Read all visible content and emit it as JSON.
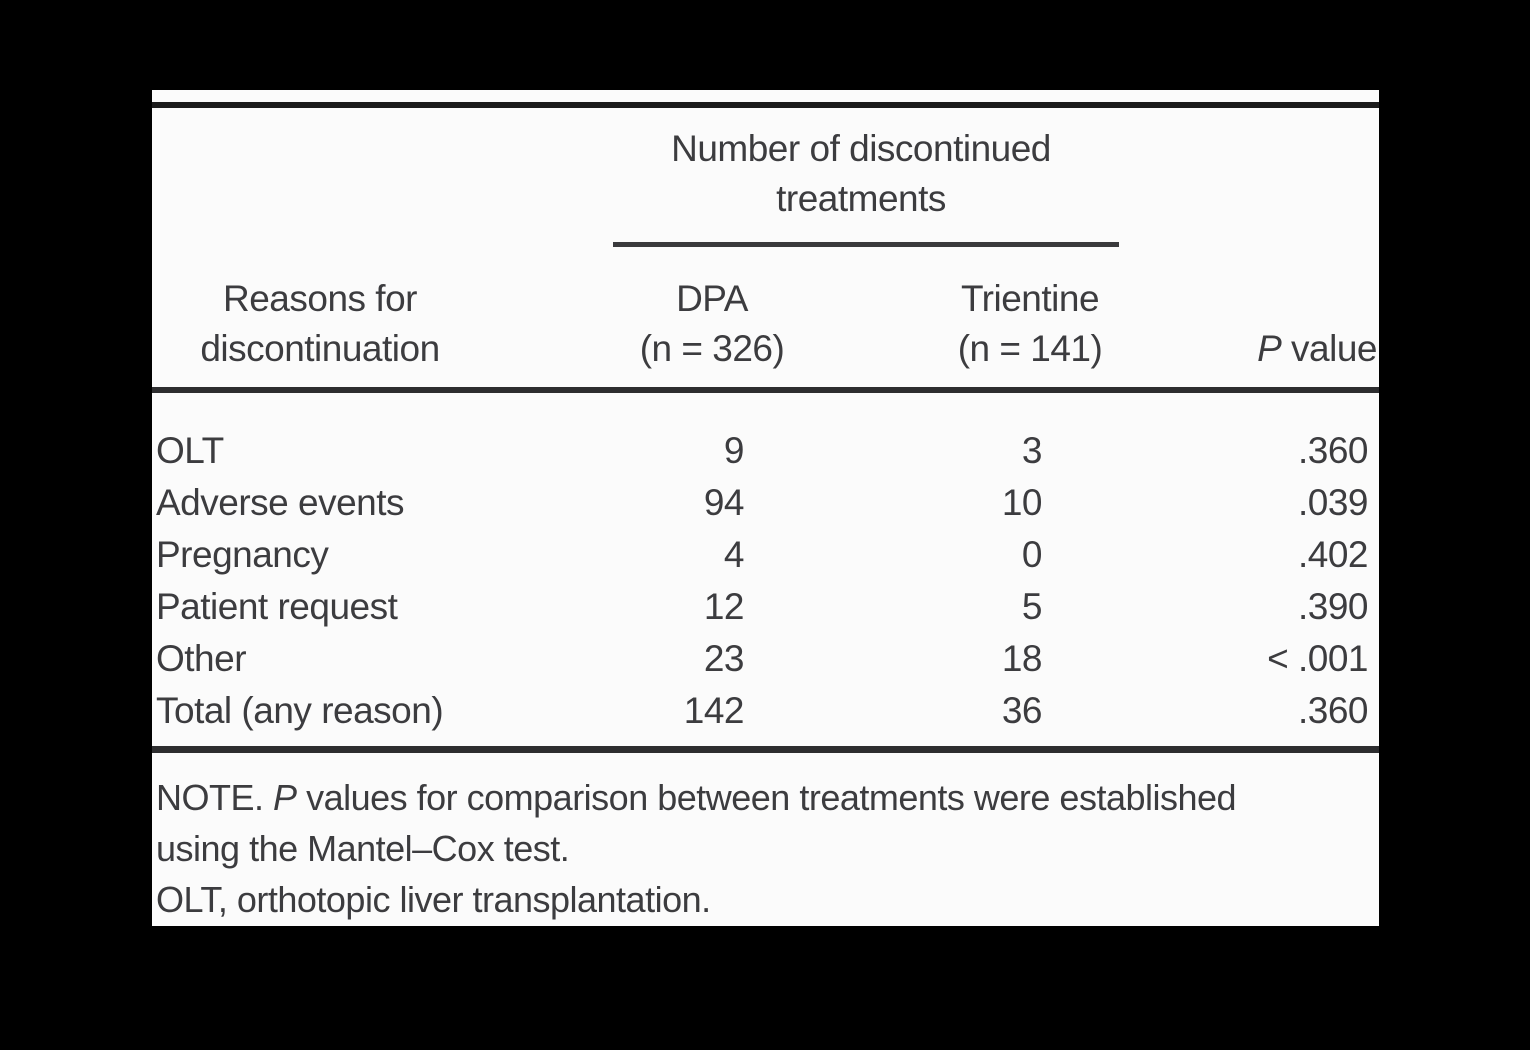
{
  "colors": {
    "background": "#000000",
    "panel": "#fbfbfb",
    "text": "#3c3c3f",
    "rule": "#2d2d2f"
  },
  "table": {
    "spanner_title": "Number of discontinued treatments",
    "columns": {
      "reasons": "Reasons for discontinuation",
      "dpa_label": "DPA",
      "dpa_n": "(n = 326)",
      "trientine_label": "Trientine",
      "trientine_n": "(n = 141)",
      "pvalue_italic": "P",
      "pvalue_rest": "value"
    },
    "rows": [
      {
        "reason": "OLT",
        "dpa": "9",
        "trientine": "3",
        "p": ".360"
      },
      {
        "reason": "Adverse events",
        "dpa": "94",
        "trientine": "10",
        "p": ".039"
      },
      {
        "reason": "Pregnancy",
        "dpa": "4",
        "trientine": "0",
        "p": ".402"
      },
      {
        "reason": "Patient request",
        "dpa": "12",
        "trientine": "5",
        "p": ".390"
      },
      {
        "reason": "Other",
        "dpa": "23",
        "trientine": "18",
        "p": "< .001"
      },
      {
        "reason": "Total (any reason)",
        "dpa": "142",
        "trientine": "36",
        "p": ".360"
      }
    ],
    "notes": {
      "line1_prefix": "NOTE.",
      "line1_italic": "P",
      "line1_rest": "values for comparison between treatments were established",
      "line2": "using the Mantel–Cox test.",
      "line3": "OLT, orthotopic liver transplantation."
    }
  }
}
